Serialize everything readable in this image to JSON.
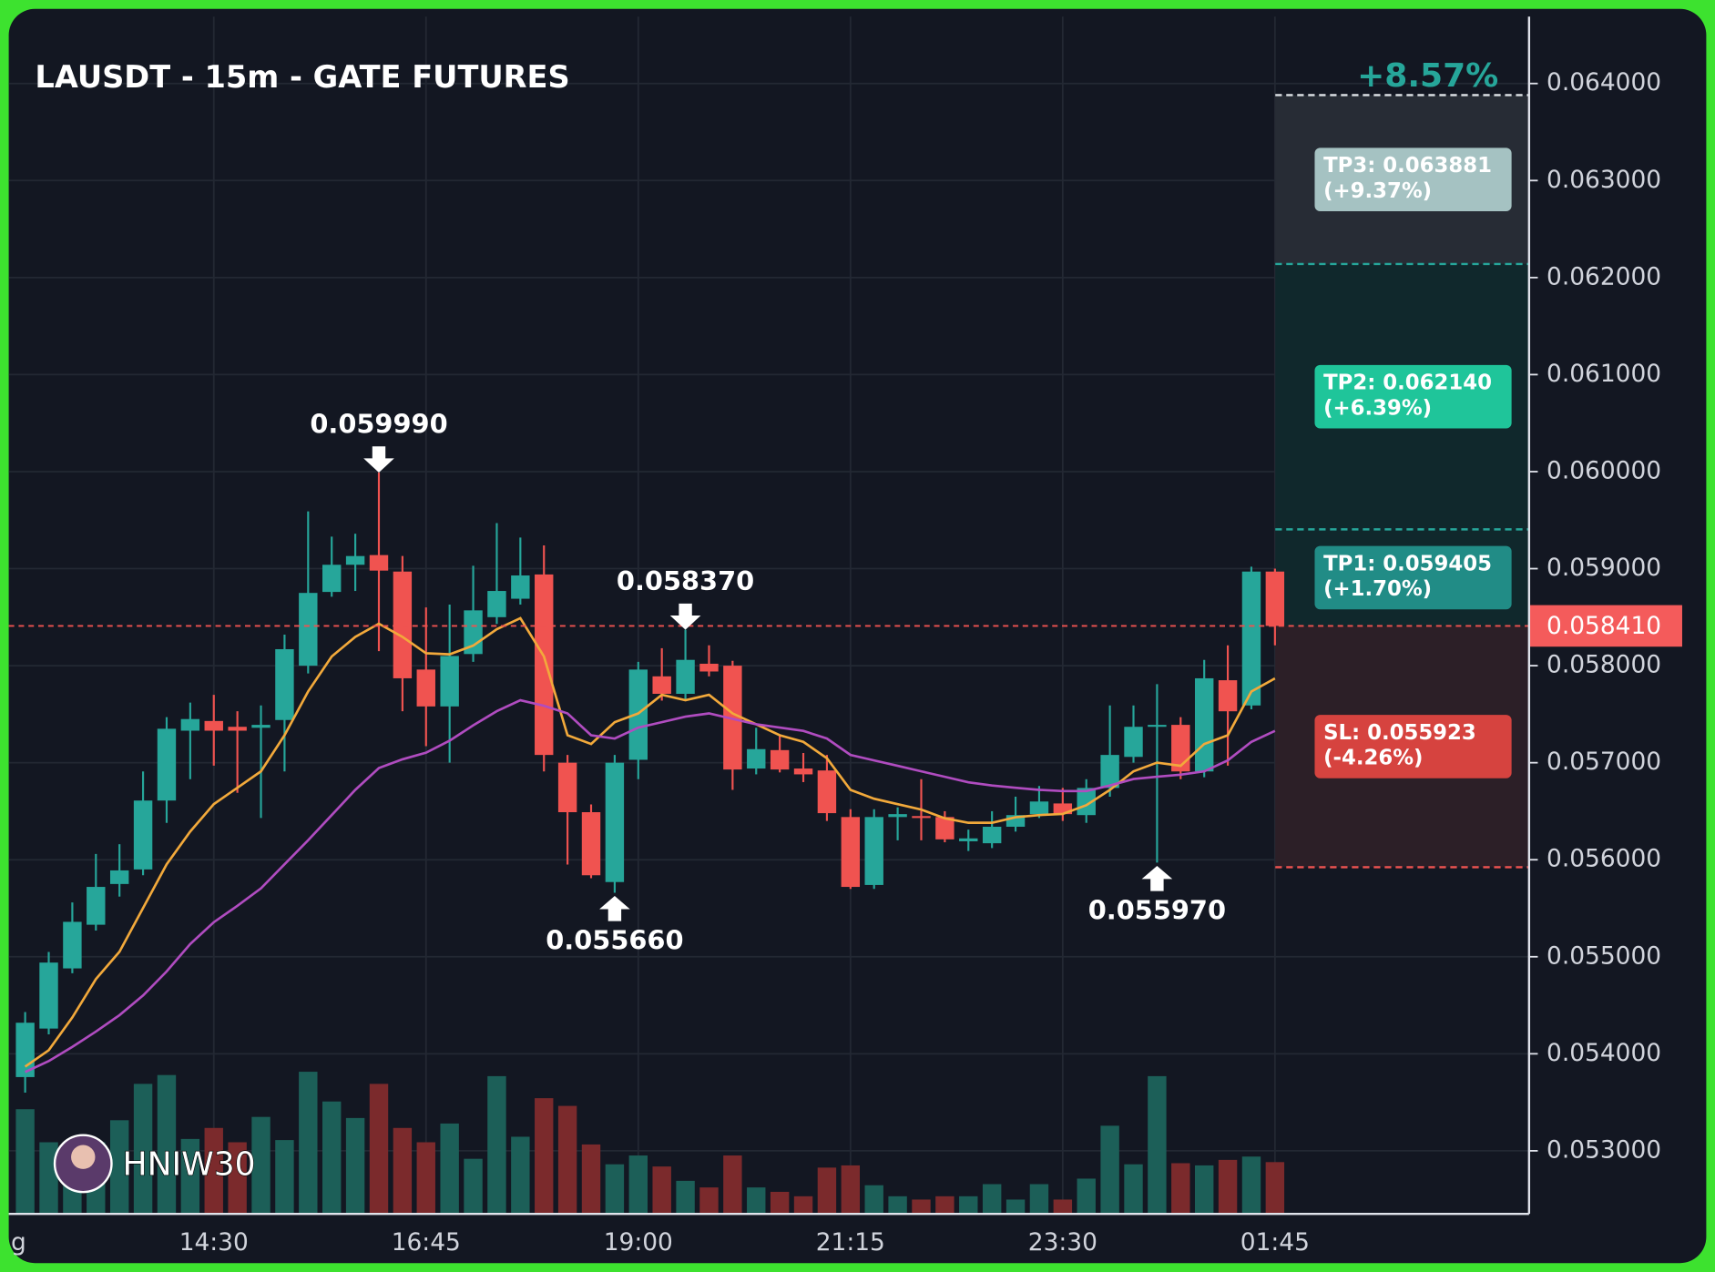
{
  "chart_data": {
    "type": "candlestick",
    "title": "LAUSDT - 15m - GATE FUTURES",
    "watermark": "HNIW30",
    "clipped_label": "g",
    "categories": [
      null,
      null,
      null,
      null,
      null,
      null,
      null,
      null,
      "14:30",
      null,
      null,
      null,
      null,
      null,
      null,
      null,
      null,
      "16:45",
      null,
      null,
      null,
      null,
      null,
      null,
      null,
      null,
      "19:00",
      null,
      null,
      null,
      null,
      null,
      null,
      null,
      null,
      "21:15",
      null,
      null,
      null,
      null,
      null,
      null,
      null,
      null,
      "23:30",
      null,
      null,
      null,
      null,
      null,
      null,
      null,
      null,
      "01:45"
    ],
    "open": [
      0.05376,
      0.05426,
      0.05488,
      0.05533,
      0.05575,
      0.0559,
      0.05661,
      0.05733,
      0.05743,
      0.05737,
      0.05736,
      0.05744,
      0.058,
      0.05876,
      0.05904,
      0.05914,
      0.05897,
      0.05796,
      0.05758,
      0.05812,
      0.0585,
      0.05869,
      0.05894,
      0.057,
      0.05649,
      0.05577,
      0.05703,
      0.05789,
      0.05771,
      0.05802,
      0.058,
      0.05694,
      0.05713,
      0.05694,
      0.05692,
      0.05644,
      0.05574,
      0.05644,
      0.05645,
      0.05644,
      0.05619,
      0.05617,
      0.05634,
      0.05647,
      0.05658,
      0.05646,
      0.05674,
      0.05706,
      0.05737,
      0.05739,
      0.05691,
      0.05785,
      0.05759,
      0.05897
    ],
    "high": [
      0.05443,
      0.05505,
      0.05556,
      0.05606,
      0.05616,
      0.05691,
      0.05747,
      0.05762,
      0.0577,
      0.05753,
      0.05759,
      0.05832,
      0.05959,
      0.05933,
      0.05936,
      0.05999,
      0.05913,
      0.0586,
      0.05863,
      0.05903,
      0.05947,
      0.05932,
      0.05924,
      0.05708,
      0.05657,
      0.05708,
      0.05804,
      0.05818,
      0.05837,
      0.05821,
      0.05805,
      0.05736,
      0.05728,
      0.0571,
      0.05708,
      0.05652,
      0.05652,
      0.05654,
      0.05683,
      0.0565,
      0.05631,
      0.0565,
      0.05665,
      0.05676,
      0.05674,
      0.05683,
      0.05759,
      0.05759,
      0.05781,
      0.05747,
      0.05806,
      0.05821,
      0.05902,
      0.059
    ],
    "low": [
      0.0536,
      0.0542,
      0.05483,
      0.05527,
      0.05562,
      0.05584,
      0.05638,
      0.05683,
      0.05697,
      0.05669,
      0.05643,
      0.05691,
      0.05792,
      0.05871,
      0.05877,
      0.05815,
      0.05753,
      0.05717,
      0.057,
      0.05804,
      0.05843,
      0.05863,
      0.05691,
      0.05595,
      0.05581,
      0.05566,
      0.05683,
      0.05764,
      0.05764,
      0.05789,
      0.05672,
      0.05688,
      0.0569,
      0.0568,
      0.0564,
      0.0557,
      0.0557,
      0.0562,
      0.0562,
      0.05618,
      0.05609,
      0.05612,
      0.05629,
      0.05643,
      0.0564,
      0.05638,
      0.05665,
      0.057,
      0.05597,
      0.05683,
      0.05685,
      0.05697,
      0.05755,
      0.05821
    ],
    "close": [
      0.05432,
      0.05494,
      0.05536,
      0.05572,
      0.05589,
      0.05661,
      0.05735,
      0.05745,
      0.05733,
      0.05733,
      0.05739,
      0.05817,
      0.05875,
      0.05904,
      0.05913,
      0.05898,
      0.05787,
      0.05758,
      0.0581,
      0.05857,
      0.05877,
      0.05893,
      0.05708,
      0.05649,
      0.05584,
      0.057,
      0.05796,
      0.05771,
      0.05806,
      0.05794,
      0.05693,
      0.05714,
      0.05693,
      0.05688,
      0.05648,
      0.05572,
      0.05644,
      0.05647,
      0.05643,
      0.05621,
      0.05622,
      0.05634,
      0.05646,
      0.0566,
      0.05647,
      0.05674,
      0.05708,
      0.05737,
      0.05739,
      0.05691,
      0.05787,
      0.05753,
      0.05897,
      0.05841
    ],
    "volume": [
      95,
      65,
      50,
      65,
      85,
      118,
      126,
      68,
      78,
      65,
      88,
      67,
      129,
      102,
      87,
      118,
      78,
      65,
      82,
      50,
      125,
      70,
      105,
      98,
      63,
      45,
      53,
      43,
      30,
      24,
      53,
      24,
      20,
      16,
      42,
      44,
      26,
      16,
      13,
      16,
      16,
      27,
      13,
      27,
      13,
      32,
      80,
      45,
      125,
      46,
      44,
      49,
      52,
      47
    ],
    "up_color": "#26a69a",
    "down_color": "#f05350",
    "volume_up_color": "#1c5f58",
    "volume_down_color": "#7b2a2c",
    "series": [
      {
        "color": "#f2a93b",
        "values": [
          0.053868,
          0.054037,
          0.054375,
          0.05477,
          0.055052,
          0.055502,
          0.055953,
          0.056291,
          0.056573,
          0.056742,
          0.056911,
          0.057283,
          0.057734,
          0.058095,
          0.058297,
          0.058433,
          0.058297,
          0.058128,
          0.058117,
          0.058207,
          0.058376,
          0.058489,
          0.058095,
          0.057283,
          0.057193,
          0.057418,
          0.057508,
          0.0577,
          0.057644,
          0.0577,
          0.057508,
          0.057396,
          0.057283,
          0.057215,
          0.057046,
          0.05672,
          0.056629,
          0.056573,
          0.056517,
          0.056427,
          0.056381,
          0.056381,
          0.056438,
          0.05646,
          0.056472,
          0.056562,
          0.05672,
          0.056911,
          0.057001,
          0.056968,
          0.057193,
          0.057283,
          0.057734,
          0.057869
        ]
      },
      {
        "color": "#b04cc0",
        "values": [
          0.053812,
          0.053925,
          0.054071,
          0.054229,
          0.054398,
          0.054601,
          0.054849,
          0.055131,
          0.055356,
          0.055525,
          0.055705,
          0.055953,
          0.056201,
          0.05646,
          0.05672,
          0.056945,
          0.057035,
          0.057103,
          0.057227,
          0.057385,
          0.057531,
          0.057644,
          0.057587,
          0.057508,
          0.057283,
          0.057249,
          0.057362,
          0.057418,
          0.057475,
          0.057508,
          0.057452,
          0.057396,
          0.057362,
          0.057328,
          0.057249,
          0.05708,
          0.057024,
          0.056968,
          0.056911,
          0.056855,
          0.056798,
          0.056765,
          0.056742,
          0.05672,
          0.056708,
          0.056708,
          0.056765,
          0.056832,
          0.056855,
          0.056877,
          0.056911,
          0.057024,
          0.057215,
          0.057328
        ]
      }
    ],
    "annotations": [
      {
        "kind": "high",
        "value": 0.05999,
        "label": "0.059990"
      },
      {
        "kind": "high",
        "value": 0.05837,
        "label": "0.058370"
      },
      {
        "kind": "low",
        "value": 0.05566,
        "label": "0.055660"
      },
      {
        "kind": "low",
        "value": 0.05597,
        "label": "0.055970"
      }
    ],
    "last_price": {
      "value": 0.05841,
      "label": "0.058410"
    },
    "range_label": "+8.57%",
    "levels": [
      {
        "value": 0.063881,
        "label": "TP3: 0.063881",
        "change": "(+9.37%)",
        "line_color": "#dfe4e8",
        "zone_color": "#272c35",
        "box_color": "#a5c2c2"
      },
      {
        "value": 0.06214,
        "label": "TP2: 0.062140",
        "change": "(+6.39%)",
        "line_color": "#26a69a",
        "zone_color": "#10282c",
        "box_color": "#1fc59a"
      },
      {
        "value": 0.059405,
        "label": "TP1: 0.059405",
        "change": "(+1.70%)",
        "line_color": "#26a69a",
        "zone_color": "#10282c",
        "box_color": "#218c86"
      },
      {
        "value": 0.055923,
        "label": "SL: 0.055923",
        "change": "(-4.26%)",
        "line_color": "#ef5350",
        "zone_color": "#2c1f27",
        "box_color": "#d6433f"
      }
    ],
    "ylim": [
      0.05235,
      0.06469
    ],
    "yticks": [
      {
        "value": 0.053,
        "label": "0.053000"
      },
      {
        "value": 0.054,
        "label": "0.054000"
      },
      {
        "value": 0.055,
        "label": "0.055000"
      },
      {
        "value": 0.056,
        "label": "0.056000"
      },
      {
        "value": 0.057,
        "label": "0.057000"
      },
      {
        "value": 0.058,
        "label": "0.058000"
      },
      {
        "value": 0.059,
        "label": "0.059000"
      },
      {
        "value": 0.06,
        "label": "0.060000"
      },
      {
        "value": 0.061,
        "label": "0.061000"
      },
      {
        "value": 0.062,
        "label": "0.062000"
      },
      {
        "value": 0.063,
        "label": "0.063000"
      },
      {
        "value": 0.064,
        "label": "0.064000"
      }
    ],
    "grid": true
  }
}
